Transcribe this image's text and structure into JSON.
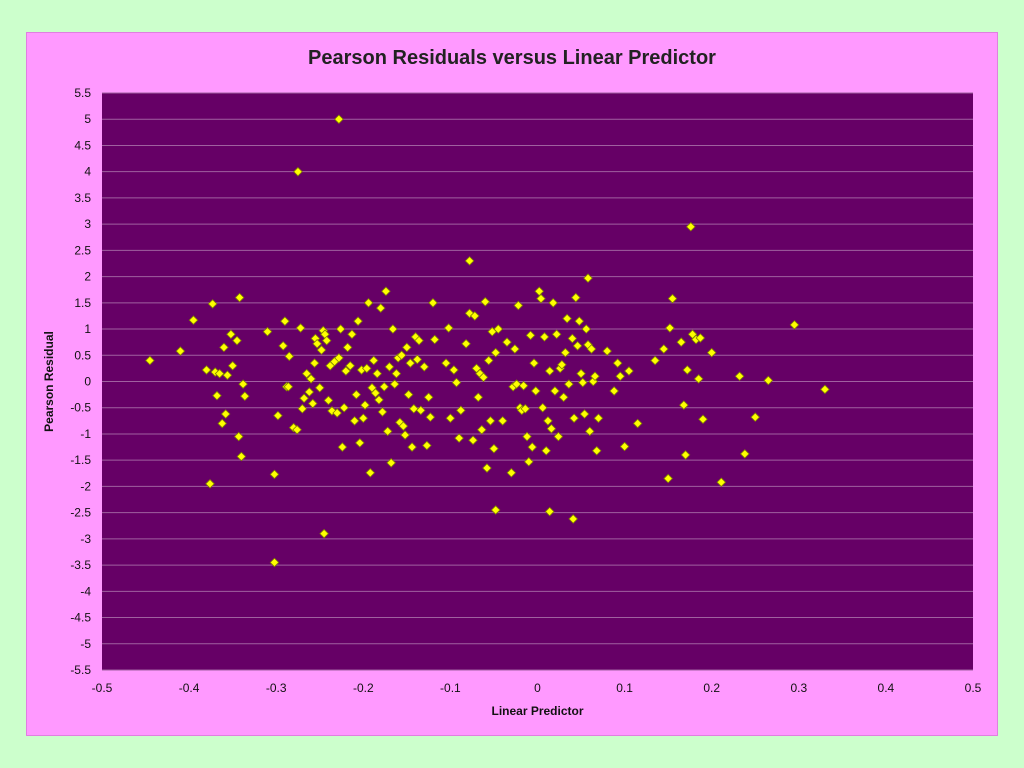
{
  "chart_data": {
    "type": "scatter",
    "title": "Pearson Residuals versus Linear Predictor",
    "xlabel": "Linear Predictor",
    "ylabel": "Pearson Residual",
    "xlim": [
      -0.5,
      0.5
    ],
    "ylim": [
      -5.5,
      5.5
    ],
    "xticks": [
      "-0.5",
      "-0.4",
      "-0.3",
      "-0.2",
      "-0.1",
      "0",
      "0.1",
      "0.2",
      "0.3",
      "0.4",
      "0.5"
    ],
    "yticks": [
      "5.5",
      "5",
      "4.5",
      "4",
      "3.5",
      "3",
      "2.5",
      "2",
      "1.5",
      "1",
      "0.5",
      "0",
      "-0.5",
      "-1",
      "-1.5",
      "-2",
      "-2.5",
      "-3",
      "-3.5",
      "-4",
      "-4.5",
      "-5",
      "-5.5"
    ],
    "grid": "horizontal",
    "colors": {
      "plot_background": "#660066",
      "marker": "#ffff00",
      "marker_edge": "#808000",
      "gridline": "#a060a0",
      "chart_background": "#ff99ff",
      "page_background": "#ccffcc"
    },
    "points": [
      [
        -0.228,
        5.0
      ],
      [
        -0.275,
        4.0
      ],
      [
        -0.302,
        -3.45
      ],
      [
        -0.245,
        -2.9
      ],
      [
        0.176,
        2.95
      ],
      [
        -0.078,
        2.3
      ],
      [
        0.058,
        1.97
      ],
      [
        -0.376,
        -1.95
      ],
      [
        -0.048,
        -2.45
      ],
      [
        0.014,
        -2.48
      ],
      [
        0.041,
        -2.62
      ],
      [
        0.211,
        -1.92
      ],
      [
        -0.445,
        0.4
      ],
      [
        -0.41,
        0.58
      ],
      [
        -0.395,
        1.17
      ],
      [
        -0.38,
        0.22
      ],
      [
        -0.373,
        1.48
      ],
      [
        -0.37,
        0.18
      ],
      [
        -0.365,
        0.15
      ],
      [
        -0.368,
        -0.27
      ],
      [
        -0.362,
        -0.8
      ],
      [
        -0.358,
        -0.62
      ],
      [
        -0.36,
        0.65
      ],
      [
        -0.356,
        0.12
      ],
      [
        -0.352,
        0.9
      ],
      [
        -0.35,
        0.3
      ],
      [
        -0.345,
        0.78
      ],
      [
        -0.342,
        1.6
      ],
      [
        -0.343,
        -1.05
      ],
      [
        -0.338,
        -0.05
      ],
      [
        -0.336,
        -0.28
      ],
      [
        -0.34,
        -1.43
      ],
      [
        -0.31,
        0.95
      ],
      [
        -0.302,
        -1.77
      ],
      [
        -0.298,
        -0.65
      ],
      [
        -0.292,
        0.68
      ],
      [
        -0.29,
        1.15
      ],
      [
        -0.288,
        -0.1
      ],
      [
        -0.285,
        0.48
      ],
      [
        -0.286,
        -0.1
      ],
      [
        -0.28,
        -0.88
      ],
      [
        -0.276,
        -0.92
      ],
      [
        -0.272,
        1.02
      ],
      [
        -0.268,
        -0.32
      ],
      [
        -0.27,
        -0.52
      ],
      [
        -0.265,
        0.15
      ],
      [
        -0.262,
        -0.2
      ],
      [
        -0.26,
        0.05
      ],
      [
        -0.258,
        -0.42
      ],
      [
        -0.256,
        0.35
      ],
      [
        -0.255,
        0.82
      ],
      [
        -0.253,
        0.72
      ],
      [
        -0.25,
        -0.12
      ],
      [
        -0.248,
        0.6
      ],
      [
        -0.246,
        0.97
      ],
      [
        -0.244,
        0.9
      ],
      [
        -0.242,
        0.78
      ],
      [
        -0.24,
        -0.36
      ],
      [
        -0.238,
        0.3
      ],
      [
        -0.236,
        -0.56
      ],
      [
        -0.233,
        0.38
      ],
      [
        -0.23,
        -0.6
      ],
      [
        -0.228,
        0.45
      ],
      [
        -0.226,
        1.0
      ],
      [
        -0.224,
        -1.25
      ],
      [
        -0.222,
        -0.5
      ],
      [
        -0.22,
        0.2
      ],
      [
        -0.218,
        0.65
      ],
      [
        -0.215,
        0.3
      ],
      [
        -0.213,
        0.9
      ],
      [
        -0.21,
        -0.75
      ],
      [
        -0.208,
        -0.25
      ],
      [
        -0.206,
        1.15
      ],
      [
        -0.204,
        -1.17
      ],
      [
        -0.202,
        0.22
      ],
      [
        -0.2,
        -0.7
      ],
      [
        -0.198,
        -0.45
      ],
      [
        -0.196,
        0.25
      ],
      [
        -0.194,
        1.5
      ],
      [
        -0.192,
        -1.74
      ],
      [
        -0.19,
        -0.12
      ],
      [
        -0.188,
        0.4
      ],
      [
        -0.186,
        -0.22
      ],
      [
        -0.184,
        0.15
      ],
      [
        -0.182,
        -0.35
      ],
      [
        -0.18,
        1.4
      ],
      [
        -0.178,
        -0.58
      ],
      [
        -0.176,
        -0.1
      ],
      [
        -0.174,
        1.72
      ],
      [
        -0.172,
        -0.95
      ],
      [
        -0.17,
        0.28
      ],
      [
        -0.168,
        -1.55
      ],
      [
        -0.166,
        1.0
      ],
      [
        -0.164,
        -0.05
      ],
      [
        -0.162,
        0.15
      ],
      [
        -0.16,
        0.45
      ],
      [
        -0.158,
        -0.78
      ],
      [
        -0.156,
        0.5
      ],
      [
        -0.154,
        -0.85
      ],
      [
        -0.152,
        -1.02
      ],
      [
        -0.15,
        0.65
      ],
      [
        -0.148,
        -0.25
      ],
      [
        -0.146,
        0.35
      ],
      [
        -0.144,
        -1.25
      ],
      [
        -0.142,
        -0.52
      ],
      [
        -0.14,
        0.85
      ],
      [
        -0.138,
        0.42
      ],
      [
        -0.136,
        0.78
      ],
      [
        -0.134,
        -0.55
      ],
      [
        -0.13,
        0.28
      ],
      [
        -0.127,
        -1.22
      ],
      [
        -0.125,
        -0.3
      ],
      [
        -0.123,
        -0.68
      ],
      [
        -0.12,
        1.5
      ],
      [
        -0.118,
        0.8
      ],
      [
        -0.105,
        0.35
      ],
      [
        -0.102,
        1.02
      ],
      [
        -0.1,
        -0.7
      ],
      [
        -0.096,
        0.22
      ],
      [
        -0.093,
        -0.02
      ],
      [
        -0.09,
        -1.08
      ],
      [
        -0.088,
        -0.55
      ],
      [
        -0.082,
        0.72
      ],
      [
        -0.078,
        1.3
      ],
      [
        -0.074,
        -1.12
      ],
      [
        -0.072,
        1.25
      ],
      [
        -0.07,
        0.25
      ],
      [
        -0.068,
        -0.3
      ],
      [
        -0.066,
        0.15
      ],
      [
        -0.064,
        -0.92
      ],
      [
        -0.062,
        0.08
      ],
      [
        -0.06,
        1.52
      ],
      [
        -0.058,
        -1.65
      ],
      [
        -0.056,
        0.4
      ],
      [
        -0.054,
        -0.75
      ],
      [
        -0.052,
        0.95
      ],
      [
        -0.05,
        -1.28
      ],
      [
        -0.048,
        0.55
      ],
      [
        -0.045,
        1.0
      ],
      [
        -0.04,
        -0.75
      ],
      [
        -0.035,
        0.75
      ],
      [
        -0.03,
        -1.74
      ],
      [
        -0.028,
        -0.1
      ],
      [
        -0.026,
        0.62
      ],
      [
        -0.024,
        -0.05
      ],
      [
        -0.022,
        1.45
      ],
      [
        -0.02,
        -0.5
      ],
      [
        -0.018,
        -0.55
      ],
      [
        -0.016,
        -0.08
      ],
      [
        -0.014,
        -0.52
      ],
      [
        -0.012,
        -1.05
      ],
      [
        -0.01,
        -1.53
      ],
      [
        -0.008,
        0.88
      ],
      [
        -0.006,
        -1.25
      ],
      [
        -0.004,
        0.35
      ],
      [
        -0.002,
        -0.18
      ],
      [
        0.002,
        1.72
      ],
      [
        0.004,
        1.58
      ],
      [
        0.006,
        -0.5
      ],
      [
        0.008,
        0.85
      ],
      [
        0.01,
        -1.32
      ],
      [
        0.012,
        -0.75
      ],
      [
        0.014,
        0.2
      ],
      [
        0.016,
        -0.9
      ],
      [
        0.018,
        1.5
      ],
      [
        0.02,
        -0.18
      ],
      [
        0.022,
        0.9
      ],
      [
        0.024,
        -1.05
      ],
      [
        0.026,
        0.25
      ],
      [
        0.028,
        0.32
      ],
      [
        0.03,
        -0.3
      ],
      [
        0.032,
        0.55
      ],
      [
        0.034,
        1.2
      ],
      [
        0.036,
        -0.05
      ],
      [
        0.04,
        0.82
      ],
      [
        0.042,
        -0.7
      ],
      [
        0.044,
        1.6
      ],
      [
        0.046,
        0.68
      ],
      [
        0.048,
        1.15
      ],
      [
        0.05,
        0.15
      ],
      [
        0.052,
        -0.02
      ],
      [
        0.054,
        -0.62
      ],
      [
        0.056,
        1.0
      ],
      [
        0.058,
        0.7
      ],
      [
        0.06,
        -0.95
      ],
      [
        0.062,
        0.62
      ],
      [
        0.064,
        0.0
      ],
      [
        0.066,
        0.1
      ],
      [
        0.068,
        -1.32
      ],
      [
        0.07,
        -0.7
      ],
      [
        0.08,
        0.58
      ],
      [
        0.088,
        -0.18
      ],
      [
        0.092,
        0.35
      ],
      [
        0.095,
        0.1
      ],
      [
        0.1,
        -1.24
      ],
      [
        0.105,
        0.2
      ],
      [
        0.115,
        -0.8
      ],
      [
        0.135,
        0.4
      ],
      [
        0.145,
        0.62
      ],
      [
        0.15,
        -1.85
      ],
      [
        0.152,
        1.02
      ],
      [
        0.155,
        1.58
      ],
      [
        0.165,
        0.75
      ],
      [
        0.168,
        -0.45
      ],
      [
        0.17,
        -1.4
      ],
      [
        0.172,
        0.22
      ],
      [
        0.178,
        0.9
      ],
      [
        0.182,
        0.8
      ],
      [
        0.185,
        0.05
      ],
      [
        0.187,
        0.83
      ],
      [
        0.19,
        -0.72
      ],
      [
        0.2,
        0.55
      ],
      [
        0.232,
        0.1
      ],
      [
        0.238,
        -1.38
      ],
      [
        0.25,
        -0.68
      ],
      [
        0.265,
        0.02
      ],
      [
        0.295,
        1.08
      ],
      [
        0.33,
        -0.15
      ]
    ]
  }
}
